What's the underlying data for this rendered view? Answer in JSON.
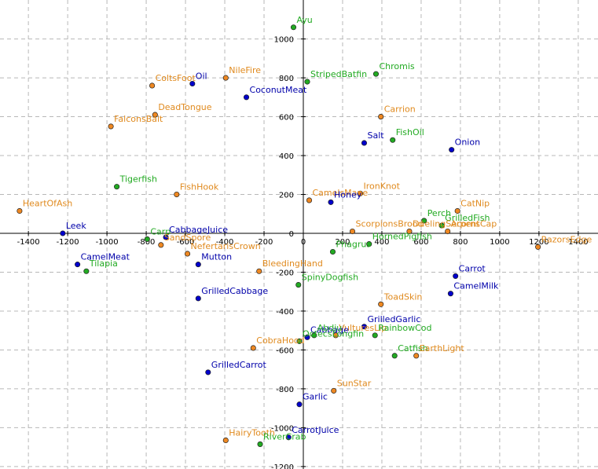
{
  "chart_data": {
    "type": "scatter",
    "title": "",
    "xlabel": "",
    "ylabel": "",
    "xlim": [
      -1550,
      1500
    ],
    "ylim": [
      -1230,
      1100
    ],
    "grid": true,
    "x_ticks": [
      -1400,
      -1200,
      -1000,
      -800,
      -600,
      -400,
      -200,
      0,
      200,
      400,
      600,
      800,
      1000,
      1200,
      1400
    ],
    "y_ticks": [
      1000,
      800,
      600,
      400,
      200,
      0,
      -200,
      -400,
      -600,
      -800,
      -1000,
      -1200
    ],
    "x_tick_labels": [
      "-1400",
      "-1200",
      "-1000",
      "-800",
      "-600",
      "-400",
      "-200",
      "0",
      "200",
      "400",
      "600",
      "800",
      "1000",
      "1200",
      "1400"
    ],
    "y_tick_labels": [
      "1000",
      "800",
      "600",
      "400",
      "200",
      "0",
      "-200",
      "-400",
      "-600",
      "-800",
      "-1000",
      "-1200"
    ],
    "colors": {
      "blue_point": "#0000cc",
      "blue_text": "#0000aa",
      "green_point": "#22aa22",
      "green_text": "#22aa22",
      "orange_point": "#ee8822",
      "orange_text": "#e08a1e",
      "grid": "#b8b8b8",
      "axis": "#000000"
    },
    "points": [
      {
        "name": "Ayu",
        "x": -50,
        "y": 1060,
        "color": "green"
      },
      {
        "name": "StripedBatfin",
        "x": 20,
        "y": 780,
        "color": "green"
      },
      {
        "name": "Chromis",
        "x": 370,
        "y": 820,
        "color": "green"
      },
      {
        "name": "NileFire",
        "x": -395,
        "y": 800,
        "color": "orange"
      },
      {
        "name": "Oil",
        "x": -565,
        "y": 770,
        "color": "blue"
      },
      {
        "name": "ColtsFoot",
        "x": -770,
        "y": 760,
        "color": "orange"
      },
      {
        "name": "CoconutMeat",
        "x": -290,
        "y": 700,
        "color": "blue"
      },
      {
        "name": "DeadTongue",
        "x": -755,
        "y": 610,
        "color": "orange"
      },
      {
        "name": "FalconsBait",
        "x": -980,
        "y": 550,
        "color": "orange"
      },
      {
        "name": "Carrion",
        "x": 395,
        "y": 600,
        "color": "orange"
      },
      {
        "name": "Salt",
        "x": 310,
        "y": 465,
        "color": "blue"
      },
      {
        "name": "FishOil",
        "x": 455,
        "y": 480,
        "color": "green"
      },
      {
        "name": "Onion",
        "x": 755,
        "y": 430,
        "color": "blue"
      },
      {
        "name": "Tigerfish",
        "x": -950,
        "y": 240,
        "color": "green"
      },
      {
        "name": "FishHook",
        "x": -645,
        "y": 200,
        "color": "orange"
      },
      {
        "name": "IronKnot",
        "x": 290,
        "y": 205,
        "color": "orange"
      },
      {
        "name": "CamelsMane",
        "x": 30,
        "y": 170,
        "color": "orange"
      },
      {
        "name": "Honey",
        "x": 140,
        "y": 160,
        "color": "blue"
      },
      {
        "name": "CatNip",
        "x": 785,
        "y": 115,
        "color": "orange"
      },
      {
        "name": "HeartOfAsh",
        "x": -1445,
        "y": 115,
        "color": "orange"
      },
      {
        "name": "Perch",
        "x": 615,
        "y": 65,
        "color": "green"
      },
      {
        "name": "GrilledFish",
        "x": 705,
        "y": 40,
        "color": "green"
      },
      {
        "name": "AcornsCap",
        "x": 735,
        "y": 10,
        "color": "orange"
      },
      {
        "name": "DuelingSerpent",
        "x": 540,
        "y": 10,
        "color": "orange"
      },
      {
        "name": "ScorpionsBrood",
        "x": 250,
        "y": 10,
        "color": "orange"
      },
      {
        "name": "Leek",
        "x": -1225,
        "y": 0,
        "color": "blue"
      },
      {
        "name": "Carp",
        "x": -795,
        "y": -30,
        "color": "green"
      },
      {
        "name": "CabbageJuice",
        "x": -700,
        "y": -20,
        "color": "blue"
      },
      {
        "name": "SandSpore",
        "x": -725,
        "y": -60,
        "color": "orange"
      },
      {
        "name": "NefertarisCrown",
        "x": -590,
        "y": -105,
        "color": "orange"
      },
      {
        "name": "Phagrus",
        "x": 150,
        "y": -95,
        "color": "green"
      },
      {
        "name": "HornedPigfish",
        "x": 335,
        "y": -55,
        "color": "green"
      },
      {
        "name": "RazorsEdge",
        "x": 1195,
        "y": -70,
        "color": "orange"
      },
      {
        "name": "CamelMeat",
        "x": -1150,
        "y": -160,
        "color": "blue"
      },
      {
        "name": "Mutton",
        "x": -535,
        "y": -160,
        "color": "blue"
      },
      {
        "name": "Tilapia",
        "x": -1105,
        "y": -195,
        "color": "green"
      },
      {
        "name": "BleedingHand",
        "x": -225,
        "y": -195,
        "color": "orange"
      },
      {
        "name": "Carrot",
        "x": 775,
        "y": -220,
        "color": "blue"
      },
      {
        "name": "SpinyDogfish",
        "x": -25,
        "y": -265,
        "color": "green"
      },
      {
        "name": "CamelMilk",
        "x": 750,
        "y": -310,
        "color": "blue"
      },
      {
        "name": "GrilledCabbage",
        "x": -535,
        "y": -335,
        "color": "blue"
      },
      {
        "name": "ToadSkin",
        "x": 395,
        "y": -365,
        "color": "orange"
      },
      {
        "name": "GrilledGarlic",
        "x": 310,
        "y": -480,
        "color": "blue"
      },
      {
        "name": "VulturesLip",
        "x": 165,
        "y": -525,
        "color": "orange"
      },
      {
        "name": "RainbowCod",
        "x": 365,
        "y": -525,
        "color": "green"
      },
      {
        "name": "Cabbage",
        "x": 20,
        "y": -535,
        "color": "blue"
      },
      {
        "name": "Abdju",
        "x": 55,
        "y": -525,
        "color": "green"
      },
      {
        "name": "OctecsLongfin",
        "x": -20,
        "y": -555,
        "color": "green"
      },
      {
        "name": "CobraHood",
        "x": -255,
        "y": -590,
        "color": "orange"
      },
      {
        "name": "Catfish",
        "x": 465,
        "y": -630,
        "color": "green"
      },
      {
        "name": "EarthLight",
        "x": 575,
        "y": -630,
        "color": "orange"
      },
      {
        "name": "GrilledCarrot",
        "x": -485,
        "y": -715,
        "color": "blue"
      },
      {
        "name": "SunStar",
        "x": 155,
        "y": -810,
        "color": "orange"
      },
      {
        "name": "Garlic",
        "x": -20,
        "y": -880,
        "color": "blue"
      },
      {
        "name": "HairyTooth",
        "x": -395,
        "y": -1065,
        "color": "orange"
      },
      {
        "name": "RiverCrab",
        "x": -220,
        "y": -1085,
        "color": "green"
      },
      {
        "name": "CarrotJuice",
        "x": -75,
        "y": -1050,
        "color": "blue"
      }
    ]
  }
}
